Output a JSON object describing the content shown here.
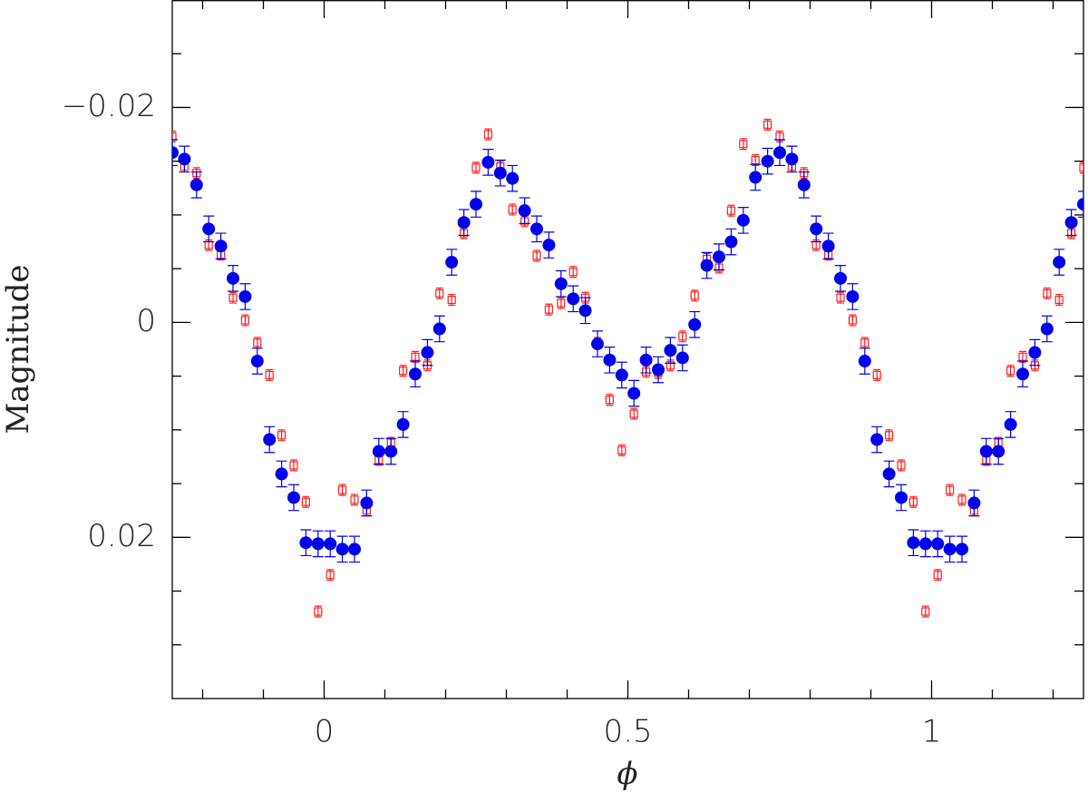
{
  "chart_data": {
    "type": "scatter",
    "xlabel": "ϕ",
    "ylabel": "Magnitude",
    "xlim": [
      -0.25,
      1.25
    ],
    "ylim": [
      -0.03,
      0.035
    ],
    "y_inverted": true,
    "xticks": [
      0,
      0.5,
      1
    ],
    "yticks": [
      {
        "value": -0.02,
        "label": "−0.02"
      },
      0,
      0.02
    ],
    "xminorticks": [
      -0.2,
      -0.1,
      0.1,
      0.2,
      0.3,
      0.4,
      0.6,
      0.7,
      0.8,
      0.9,
      1.1,
      1.2
    ],
    "yminorticks": [
      -0.025,
      -0.015,
      -0.01,
      -0.005,
      0.005,
      0.01,
      0.015,
      0.025,
      0.03
    ],
    "x": [
      -0.25,
      -0.23,
      -0.21,
      -0.19,
      -0.17,
      -0.15,
      -0.13,
      -0.11,
      -0.09,
      -0.07,
      -0.05,
      -0.03,
      -0.01,
      0.01,
      0.03,
      0.05,
      0.07,
      0.09,
      0.11,
      0.13,
      0.15,
      0.17,
      0.19,
      0.21,
      0.23,
      0.25,
      0.27,
      0.29,
      0.31,
      0.33,
      0.35,
      0.37,
      0.39,
      0.41,
      0.43,
      0.45,
      0.47,
      0.49,
      0.51,
      0.53,
      0.55,
      0.57,
      0.59,
      0.61,
      0.63,
      0.65,
      0.67,
      0.69,
      0.71,
      0.73,
      0.75,
      0.77,
      0.79,
      0.81,
      0.83,
      0.85,
      0.87,
      0.89,
      0.91,
      0.93,
      0.95,
      0.97,
      0.99,
      1.01,
      1.03,
      1.05,
      1.07,
      1.09,
      1.11,
      1.13,
      1.15,
      1.17,
      1.19,
      1.21,
      1.23,
      1.25
    ],
    "series": [
      {
        "color": "#ff2020",
        "marker": "open-square",
        "error": 0.0005,
        "values": [
          -0.0173,
          -0.0145,
          -0.0139,
          -0.0072,
          -0.0063,
          -0.0023,
          -0.0002,
          0.0019,
          0.0049,
          0.0105,
          0.0133,
          0.0167,
          0.0269,
          0.0235,
          0.0156,
          0.0165,
          0.0175,
          0.0128,
          0.0112,
          0.0045,
          0.0032,
          0.004,
          -0.0027,
          -0.0021,
          -0.0083,
          -0.0144,
          -0.0175,
          -0.0145,
          -0.0105,
          -0.0094,
          -0.0062,
          -0.0012,
          -0.0018,
          -0.0047,
          -0.0023,
          0.0019,
          0.0072,
          0.0119,
          0.0085,
          0.0046,
          0.0047,
          0.004,
          0.0013,
          -0.0025,
          -0.0059,
          -0.0051,
          -0.0104,
          -0.0166,
          -0.0151,
          -0.0184,
          -0.0173,
          -0.0145,
          -0.0139,
          -0.0072,
          -0.0063,
          -0.0023,
          -0.0002,
          0.0019,
          0.0049,
          0.0105,
          0.0133,
          0.0167,
          0.0269,
          0.0235,
          0.0156,
          0.0165,
          0.0175,
          0.0128,
          0.0112,
          0.0045,
          0.0032,
          0.004,
          -0.0027,
          -0.0021,
          -0.0083,
          -0.0144
        ]
      },
      {
        "color": "#0000ee",
        "marker": "filled-circle",
        "error": 0.0012,
        "values": [
          -0.0158,
          -0.0152,
          -0.0128,
          -0.0087,
          -0.0071,
          -0.0041,
          -0.0024,
          0.0036,
          0.0109,
          0.0141,
          0.0163,
          0.0205,
          0.0206,
          0.0206,
          0.0211,
          0.0211,
          0.0168,
          0.012,
          0.012,
          0.0095,
          0.0048,
          0.0028,
          0.0006,
          -0.0056,
          -0.0093,
          -0.011,
          -0.0149,
          -0.0139,
          -0.0134,
          -0.0104,
          -0.0087,
          -0.0072,
          -0.0036,
          -0.0022,
          -0.0011,
          0.002,
          0.0035,
          0.0049,
          0.0066,
          0.0035,
          0.0044,
          0.0026,
          0.0033,
          0.0002,
          -0.0053,
          -0.0061,
          -0.0075,
          -0.0095,
          -0.0135,
          -0.015,
          -0.0158,
          -0.0152,
          -0.0128,
          -0.0087,
          -0.0071,
          -0.0041,
          -0.0024,
          0.0036,
          0.0109,
          0.0141,
          0.0163,
          0.0205,
          0.0206,
          0.0206,
          0.0211,
          0.0211,
          0.0168,
          0.012,
          0.012,
          0.0095,
          0.0048,
          0.0028,
          0.0006,
          -0.0056,
          -0.0093,
          -0.011
        ]
      }
    ]
  }
}
